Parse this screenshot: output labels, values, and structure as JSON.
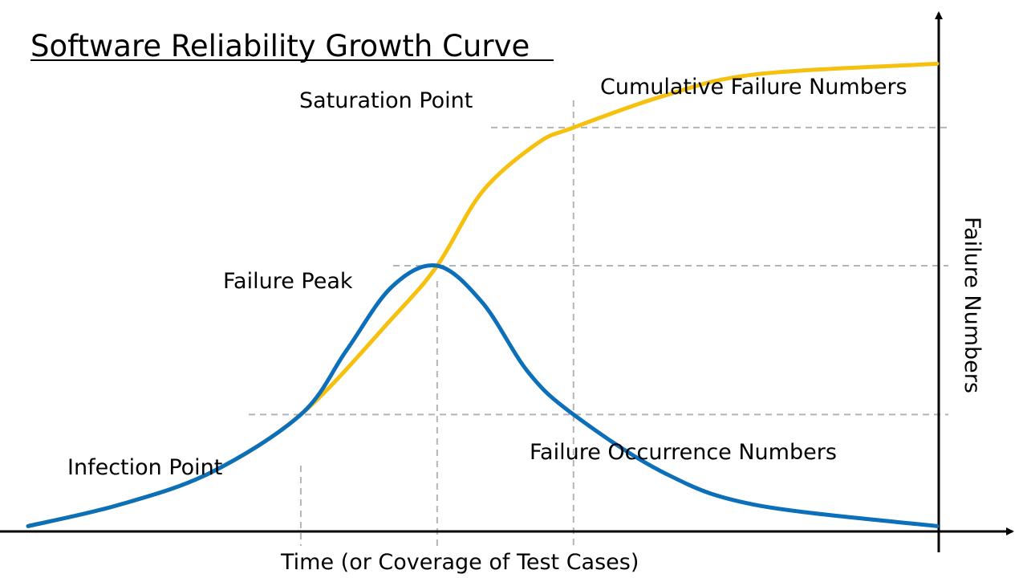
{
  "chart_data": {
    "type": "line",
    "title": "Software Reliability Growth Curve",
    "xlabel": "Time (or Coverage of Test Cases)",
    "ylabel": "Failure Numbers",
    "grid": false,
    "axis_position": "y-axis on the right",
    "series": [
      {
        "name": "Cumulative Failure Numbers",
        "color": "#f6c00f",
        "points": [
          [
            0.0,
            0.01
          ],
          [
            0.1,
            0.05
          ],
          [
            0.2,
            0.11
          ],
          [
            0.3,
            0.22
          ],
          [
            0.4,
            0.4
          ],
          [
            0.45,
            0.5
          ],
          [
            0.5,
            0.64
          ],
          [
            0.56,
            0.73
          ],
          [
            0.6,
            0.76
          ],
          [
            0.7,
            0.82
          ],
          [
            0.8,
            0.86
          ],
          [
            1.0,
            0.88
          ]
        ]
      },
      {
        "name": "Failure Occurrence Numbers",
        "color": "#0b6fba",
        "points": [
          [
            0.0,
            0.01
          ],
          [
            0.1,
            0.05
          ],
          [
            0.2,
            0.11
          ],
          [
            0.3,
            0.22
          ],
          [
            0.35,
            0.34
          ],
          [
            0.4,
            0.46
          ],
          [
            0.45,
            0.5
          ],
          [
            0.5,
            0.43
          ],
          [
            0.55,
            0.3
          ],
          [
            0.6,
            0.22
          ],
          [
            0.7,
            0.11
          ],
          [
            0.8,
            0.05
          ],
          [
            1.0,
            0.01
          ]
        ]
      }
    ],
    "annotations": [
      {
        "text": "Infection Point",
        "x": 0.3,
        "y": 0.22
      },
      {
        "text": "Failure Peak",
        "x": 0.45,
        "y": 0.5
      },
      {
        "text": "Saturation Point",
        "x": 0.6,
        "y": 0.76
      },
      {
        "text": "Cumulative Failure Numbers"
      },
      {
        "text": "Failure Occurrence Numbers"
      }
    ],
    "reference_lines": [
      {
        "kind": "vertical",
        "x": 0.3
      },
      {
        "kind": "vertical",
        "x": 0.45
      },
      {
        "kind": "vertical",
        "x": 0.6
      },
      {
        "kind": "horizontal",
        "y": 0.22
      },
      {
        "kind": "horizontal",
        "y": 0.5
      },
      {
        "kind": "horizontal",
        "y": 0.76
      }
    ]
  }
}
